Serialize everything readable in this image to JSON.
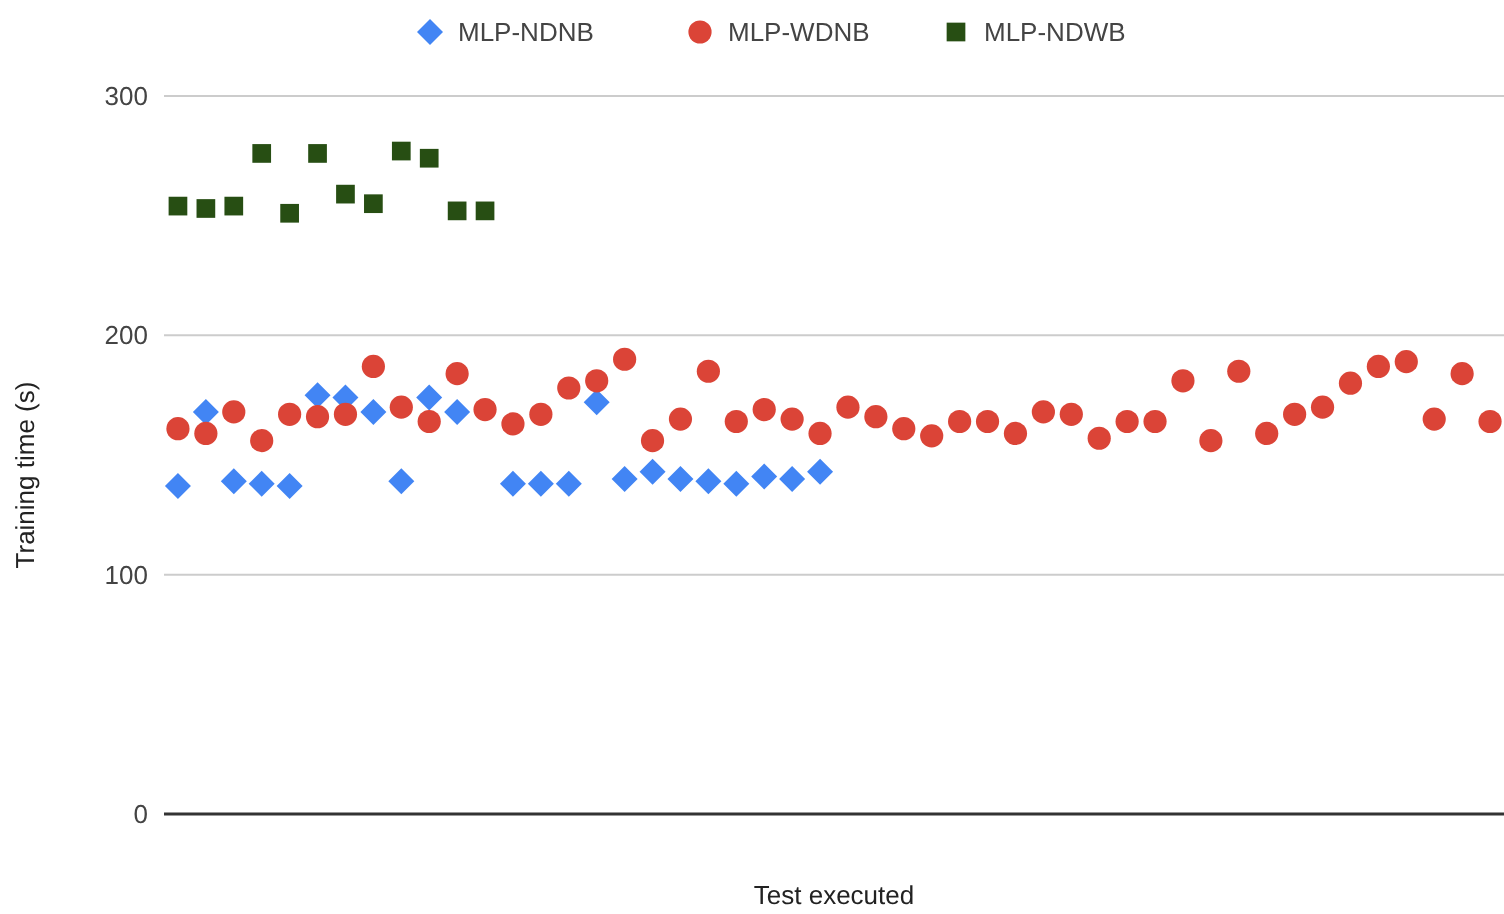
{
  "chart_data": {
    "type": "scatter",
    "xlabel": "Test executed",
    "ylabel": "Training time (s)",
    "categories": [
      null,
      null,
      null,
      null,
      null,
      null,
      null,
      null,
      null,
      null,
      null,
      null,
      null,
      null,
      null,
      null,
      null,
      null,
      null,
      null,
      null,
      null,
      null,
      null,
      null,
      null,
      null,
      null,
      null,
      null,
      null,
      null,
      null,
      null,
      null,
      null,
      null,
      null,
      null,
      null,
      null,
      null,
      null,
      null,
      null,
      null,
      null,
      null
    ],
    "ylim": [
      0,
      300
    ],
    "yticks": [
      0,
      100,
      200,
      300
    ],
    "grid": "y",
    "legend": "top",
    "series": [
      {
        "name": "MLP-NDNB",
        "color": "#4285f4",
        "marker": "diamond",
        "values": [
          137,
          168,
          139,
          138,
          137,
          175,
          174,
          168,
          139,
          174,
          168,
          null,
          138,
          138,
          138,
          172,
          140,
          143,
          140,
          139,
          138,
          141,
          140,
          143,
          null,
          null,
          null,
          null,
          null,
          null,
          null,
          null,
          null,
          null,
          null,
          null,
          null,
          null,
          null,
          null,
          null,
          null,
          null,
          null,
          null,
          null,
          null,
          null
        ]
      },
      {
        "name": "MLP-WDNB",
        "color": "#db4437",
        "marker": "circle",
        "values": [
          161,
          159,
          168,
          156,
          167,
          166,
          167,
          187,
          170,
          164,
          184,
          169,
          163,
          167,
          178,
          181,
          190,
          156,
          165,
          185,
          164,
          169,
          165,
          159,
          170,
          166,
          161,
          158,
          164,
          164,
          159,
          168,
          167,
          157,
          164,
          164,
          181,
          156,
          185,
          159,
          167,
          170,
          180,
          187,
          189,
          165,
          184,
          164
        ]
      },
      {
        "name": "MLP-NDWB",
        "color": "#274e13",
        "marker": "square",
        "values": [
          254,
          253,
          254,
          276,
          251,
          276,
          259,
          255,
          277,
          274,
          252,
          252,
          null,
          null,
          null,
          null,
          null,
          null,
          null,
          null,
          null,
          null,
          null,
          null,
          null,
          null,
          null,
          null,
          null,
          null,
          null,
          null,
          null,
          null,
          null,
          null,
          null,
          null,
          null,
          null,
          null,
          null,
          null,
          null,
          null,
          null,
          null,
          null
        ]
      }
    ]
  }
}
